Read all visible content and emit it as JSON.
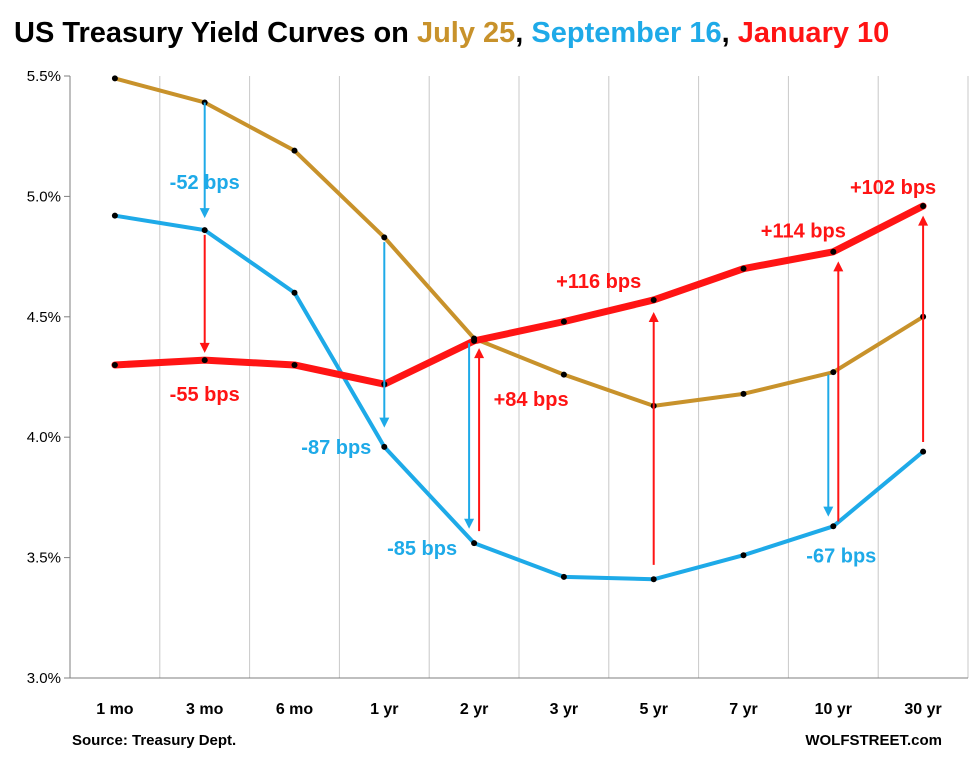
{
  "chart_data": {
    "type": "line",
    "title_parts": [
      {
        "text": "US Treasury Yield Curves on ",
        "color": "#000000"
      },
      {
        "text": "July 25",
        "color": "#C8922B"
      },
      {
        "text": ", ",
        "color": "#000000"
      },
      {
        "text": "September 16",
        "color": "#1EAAE8"
      },
      {
        "text": ", ",
        "color": "#000000"
      },
      {
        "text": "January 10",
        "color": "#FF1414"
      }
    ],
    "categories": [
      "1 mo",
      "3 mo",
      "6 mo",
      "1 yr",
      "2 yr",
      "3 yr",
      "5 yr",
      "7 yr",
      "10 yr",
      "30 yr"
    ],
    "ylim": [
      3.0,
      5.5
    ],
    "yticks": [
      3.0,
      3.5,
      4.0,
      4.5,
      5.0,
      5.5
    ],
    "ytick_labels": [
      "3.0%",
      "3.5%",
      "4.0%",
      "4.5%",
      "5.0%",
      "5.5%"
    ],
    "grid": "vertical",
    "series": [
      {
        "name": "July 25",
        "color": "#C8922B",
        "width": 4,
        "values": [
          5.49,
          5.39,
          5.19,
          4.83,
          4.41,
          4.26,
          4.13,
          4.18,
          4.27,
          4.5
        ]
      },
      {
        "name": "September 16",
        "color": "#1EAAE8",
        "width": 4,
        "values": [
          4.92,
          4.86,
          4.6,
          3.96,
          3.56,
          3.42,
          3.41,
          3.51,
          3.63,
          3.94
        ]
      },
      {
        "name": "January 10",
        "color": "#FF1414",
        "width": 7,
        "values": [
          4.3,
          4.32,
          4.3,
          4.22,
          4.4,
          4.48,
          4.57,
          4.7,
          4.77,
          4.96
        ]
      }
    ],
    "arrows": [
      {
        "category": "3 mo",
        "from": 5.39,
        "to": 4.91,
        "color": "#1EAAE8"
      },
      {
        "category": "3 mo",
        "from": 4.84,
        "to": 4.35,
        "color": "#FF1414"
      },
      {
        "category": "1 yr",
        "from": 4.81,
        "to": 4.04,
        "color": "#1EAAE8"
      },
      {
        "category": "2 yr",
        "from": 4.39,
        "to": 3.62,
        "color": "#1EAAE8",
        "offset": -1
      },
      {
        "category": "2 yr",
        "from": 3.61,
        "to": 4.37,
        "color": "#FF1414",
        "offset": 1
      },
      {
        "category": "5 yr",
        "from": 3.47,
        "to": 4.52,
        "color": "#FF1414"
      },
      {
        "category": "10 yr",
        "from": 4.26,
        "to": 3.67,
        "color": "#1EAAE8",
        "offset": -1
      },
      {
        "category": "10 yr",
        "from": 3.65,
        "to": 4.73,
        "color": "#FF1414",
        "offset": 1
      },
      {
        "category": "30 yr",
        "from": 3.98,
        "to": 4.92,
        "color": "#FF1414"
      }
    ],
    "annotations": [
      {
        "text": "-52 bps",
        "color": "#1EAAE8"
      },
      {
        "text": "-55 bps",
        "color": "#FF1414"
      },
      {
        "text": "-87 bps",
        "color": "#1EAAE8"
      },
      {
        "text": "-85 bps",
        "color": "#1EAAE8"
      },
      {
        "text": "+84 bps",
        "color": "#FF1414"
      },
      {
        "text": "+116 bps",
        "color": "#FF1414"
      },
      {
        "text": "+114 bps",
        "color": "#FF1414"
      },
      {
        "text": "-67 bps",
        "color": "#1EAAE8"
      },
      {
        "text": "+102 bps",
        "color": "#FF1414"
      }
    ],
    "source": "Source: Treasury Dept.",
    "credit": "WOLFSTREET.com"
  }
}
